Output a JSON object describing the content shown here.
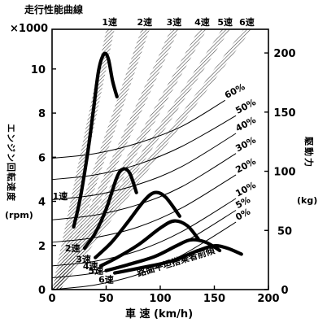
{
  "chart_data": {
    "type": "line",
    "title": "走行性能曲線",
    "xlabel": "車 速 (km/h)",
    "ylabel_left": "エンジン回転速度",
    "ylabel_left_unit": "(rpm)",
    "ylabel_left_multiplier": "×1000",
    "ylabel_right": "駆動力",
    "ylabel_right_unit": "(kg)",
    "x_ticks": [
      "0",
      "50",
      "100",
      "150",
      "200"
    ],
    "y_left_ticks": [
      "0",
      "2",
      "4",
      "6",
      "8",
      "10"
    ],
    "y_right_ticks": [
      "0",
      "50",
      "100",
      "150",
      "200"
    ],
    "xlim": [
      0,
      200
    ],
    "ylim_left": [
      0,
      11.8
    ],
    "ylim_right": [
      0,
      220
    ],
    "road_resistance_label": "路面平坦搭乗者前傾",
    "gear_rpm_lines": [
      {
        "name": "1速",
        "kmh_per_1000rpm": 4.25
      },
      {
        "name": "2速",
        "kmh_per_1000rpm": 7.0
      },
      {
        "name": "3速",
        "kmh_per_1000rpm": 9.3
      },
      {
        "name": "4速",
        "kmh_per_1000rpm": 11.5
      },
      {
        "name": "5速",
        "kmh_per_1000rpm": 13.3
      },
      {
        "name": "6速",
        "kmh_per_1000rpm": 15.0
      }
    ],
    "drive_force_curves": [
      {
        "name": "1速",
        "points": [
          [
            20,
            53
          ],
          [
            26,
            77
          ],
          [
            33,
            116
          ],
          [
            38,
            150
          ],
          [
            43,
            185
          ],
          [
            48,
            199
          ],
          [
            52,
            195
          ],
          [
            56,
            176
          ],
          [
            60,
            163
          ]
        ]
      },
      {
        "name": "2速",
        "points": [
          [
            30,
            35
          ],
          [
            40,
            48
          ],
          [
            50,
            68
          ],
          [
            60,
            95
          ],
          [
            66,
            102
          ],
          [
            72,
            98
          ],
          [
            78,
            82
          ]
        ]
      },
      {
        "name": "3速",
        "points": [
          [
            40,
            27
          ],
          [
            55,
            40
          ],
          [
            70,
            57
          ],
          [
            85,
            75
          ],
          [
            95,
            82
          ],
          [
            105,
            78
          ],
          [
            118,
            62
          ]
        ]
      },
      {
        "name": "4速",
        "points": [
          [
            45,
            20
          ],
          [
            60,
            27
          ],
          [
            80,
            38
          ],
          [
            100,
            52
          ],
          [
            113,
            58
          ],
          [
            125,
            54
          ],
          [
            135,
            43
          ]
        ]
      },
      {
        "name": "5速",
        "points": [
          [
            50,
            16
          ],
          [
            70,
            21
          ],
          [
            95,
            28
          ],
          [
            115,
            37
          ],
          [
            128,
            42
          ],
          [
            142,
            40
          ],
          [
            155,
            33
          ]
        ]
      },
      {
        "name": "6速",
        "points": [
          [
            58,
            14
          ],
          [
            80,
            18
          ],
          [
            110,
            24
          ],
          [
            135,
            33
          ],
          [
            150,
            37
          ],
          [
            162,
            35
          ],
          [
            175,
            30
          ]
        ]
      }
    ],
    "grade_resistance_curves": [
      {
        "name": "60%",
        "points": [
          [
            0,
            111
          ],
          [
            40,
            115
          ],
          [
            80,
            124
          ],
          [
            120,
            138
          ],
          [
            160,
            160
          ]
        ]
      },
      {
        "name": "50%",
        "points": [
          [
            0,
            93
          ],
          [
            40,
            97
          ],
          [
            80,
            106
          ],
          [
            120,
            121
          ],
          [
            170,
            147
          ]
        ]
      },
      {
        "name": "40%",
        "points": [
          [
            0,
            76
          ],
          [
            40,
            80
          ],
          [
            80,
            89
          ],
          [
            120,
            104
          ],
          [
            170,
            132
          ]
        ]
      },
      {
        "name": "30%",
        "points": [
          [
            0,
            59
          ],
          [
            40,
            63
          ],
          [
            80,
            72
          ],
          [
            120,
            87
          ],
          [
            170,
            115
          ]
        ]
      },
      {
        "name": "20%",
        "points": [
          [
            0,
            40
          ],
          [
            40,
            44
          ],
          [
            80,
            53
          ],
          [
            120,
            69
          ],
          [
            170,
            97
          ]
        ]
      },
      {
        "name": "10%",
        "points": [
          [
            0,
            20
          ],
          [
            40,
            24
          ],
          [
            80,
            33
          ],
          [
            120,
            49
          ],
          [
            170,
            77
          ]
        ]
      },
      {
        "name": "5%",
        "points": [
          [
            0,
            10
          ],
          [
            40,
            14
          ],
          [
            80,
            23
          ],
          [
            120,
            39
          ],
          [
            170,
            67
          ]
        ]
      },
      {
        "name": "0%",
        "points": [
          [
            0,
            0
          ],
          [
            40,
            4
          ],
          [
            80,
            13
          ],
          [
            120,
            29
          ],
          [
            170,
            57
          ]
        ]
      }
    ]
  }
}
